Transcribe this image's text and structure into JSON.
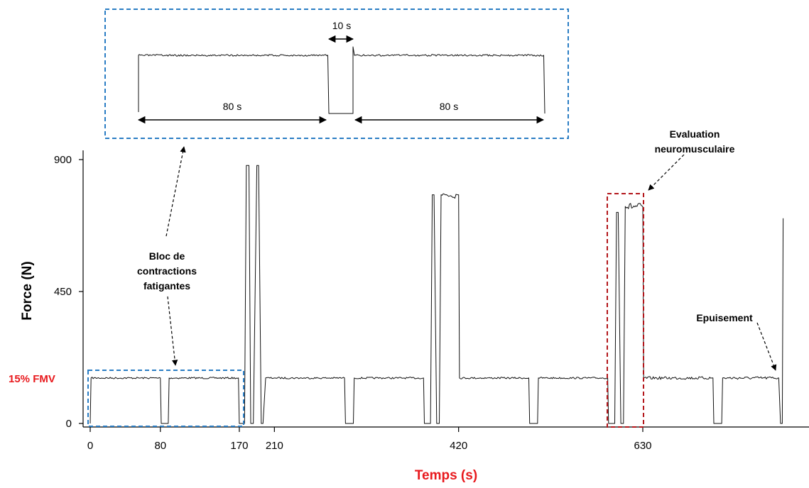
{
  "chart_data": {
    "type": "line",
    "xlabel": "Temps (s)",
    "ylabel": "Force (N)",
    "xlim": [
      0,
      790
    ],
    "ylim": [
      0,
      900
    ],
    "x_ticks": [
      {
        "value": 0,
        "label": "0"
      },
      {
        "value": 80,
        "label": "80"
      },
      {
        "value": 170,
        "label": "170"
      },
      {
        "value": 210,
        "label": "210"
      },
      {
        "value": 420,
        "label": "420"
      },
      {
        "value": 630,
        "label": "630"
      }
    ],
    "y_ticks": [
      {
        "value": 0,
        "label": "0"
      },
      {
        "value": 450,
        "label": "450"
      },
      {
        "value": 900,
        "label": "900"
      }
    ],
    "reference_level": {
      "value": 155,
      "label": "15% FMV",
      "color": "#e8191d"
    },
    "series": [
      {
        "x": [
          0,
          1,
          80,
          81,
          89,
          90,
          169,
          170,
          176,
          178,
          181,
          183,
          186,
          190,
          192,
          195,
          197,
          200,
          210,
          211,
          290,
          291,
          300,
          301,
          380,
          381,
          388,
          390,
          392,
          395,
          398,
          400,
          420,
          421,
          500,
          501,
          510,
          511,
          590,
          591,
          598,
          600,
          602,
          605,
          608,
          610,
          630,
          631,
          710,
          711,
          720,
          721,
          785,
          787,
          789,
          790
        ],
        "y": [
          0,
          155,
          155,
          0,
          0,
          155,
          155,
          0,
          0,
          880,
          880,
          0,
          0,
          880,
          880,
          0,
          0,
          155,
          155,
          155,
          155,
          0,
          0,
          155,
          155,
          0,
          0,
          780,
          780,
          0,
          0,
          780,
          780,
          155,
          155,
          0,
          0,
          155,
          155,
          0,
          0,
          720,
          720,
          0,
          0,
          740,
          740,
          155,
          155,
          0,
          0,
          155,
          155,
          0,
          0,
          700
        ]
      }
    ],
    "annotations": [
      {
        "text": "Bloc de contractions fatigantes"
      },
      {
        "text": "Evaluation neuromusculaire"
      },
      {
        "text": "Epuisement"
      }
    ],
    "inset": {
      "segment_label_left": "80 s",
      "segment_label_right": "80 s",
      "gap_label": "10 s"
    },
    "colors": {
      "signal": "#111111",
      "block_box": "#2a7dc4",
      "eval_box": "#b3161b",
      "xlabel": "#e8191d"
    }
  }
}
